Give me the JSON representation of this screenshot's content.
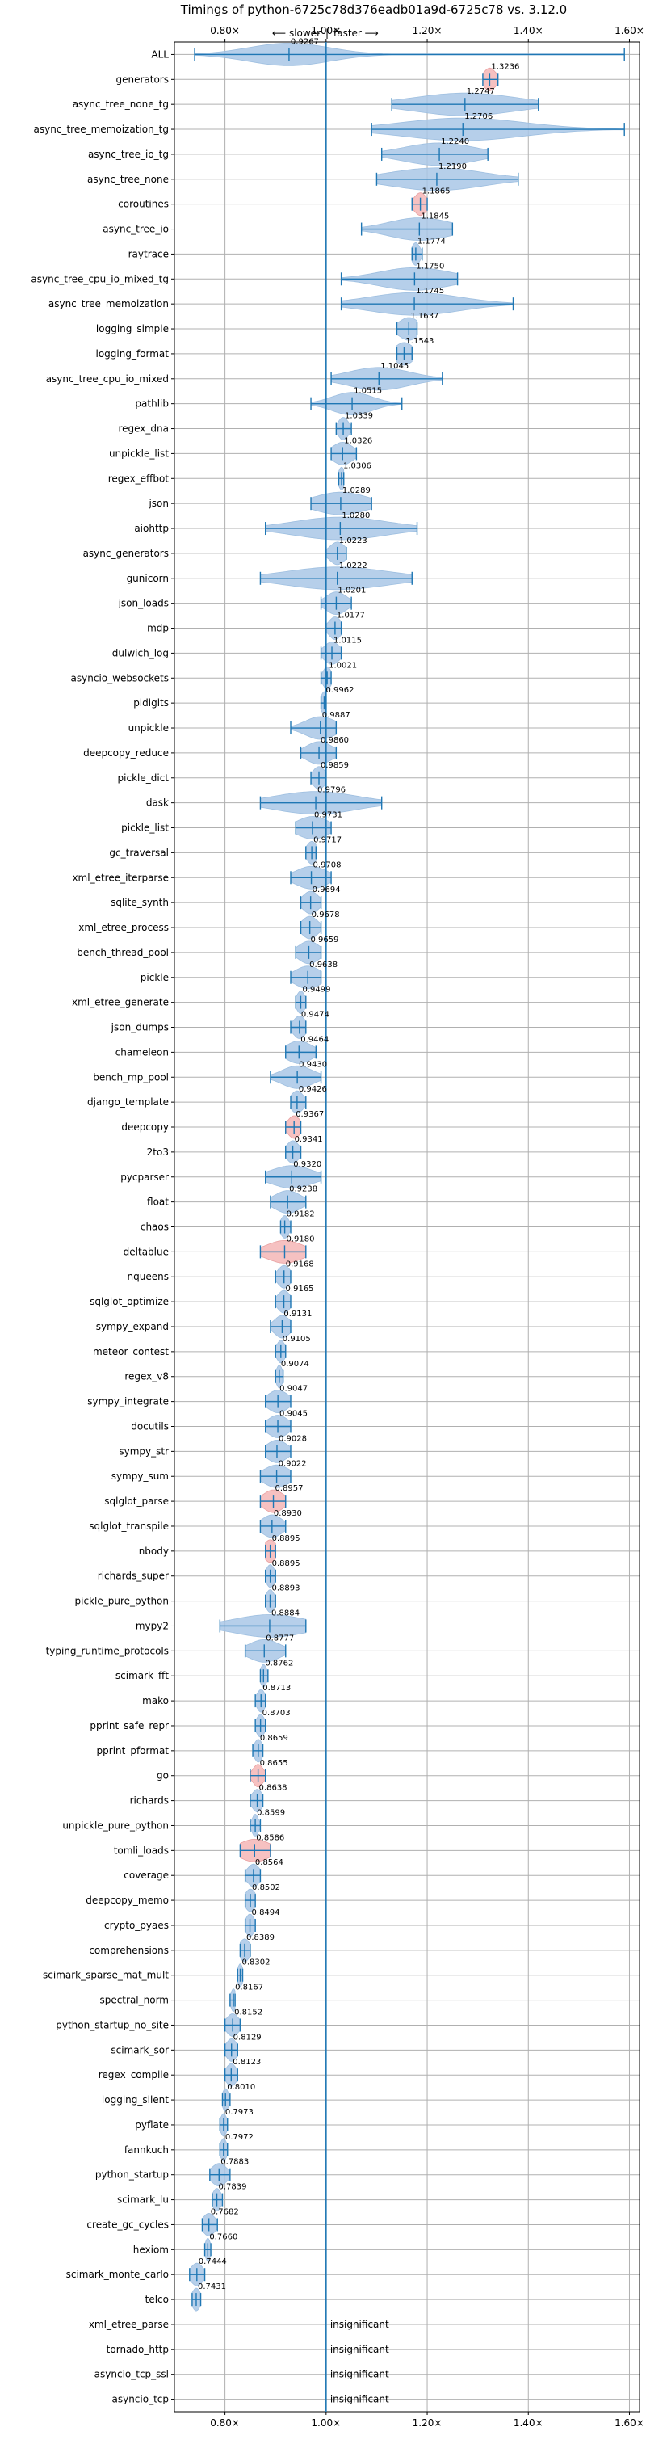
{
  "chart_data": {
    "type": "violin",
    "title": "Timings of python-6725c78d376eadb01a9d-6725c78 vs. 3.12.0",
    "direction": {
      "slower": "⟵ slower",
      "separator": "|",
      "faster": "faster ⟶"
    },
    "xlim": [
      0.7,
      1.62
    ],
    "xticks": [
      0.8,
      1.0,
      1.2,
      1.4,
      1.6
    ],
    "xtick_labels": [
      "0.80×",
      "1.00×",
      "1.20×",
      "1.40×",
      "1.60×"
    ],
    "grid": true,
    "insignificant_label": "insignificant",
    "benchmarks": [
      {
        "name": "ALL",
        "mean": 0.9267,
        "label": "0.9267",
        "min": 0.74,
        "max": 1.59,
        "spread": 0.08
      },
      {
        "name": "generators",
        "mean": 1.3236,
        "label": "1.3236",
        "min": 1.31,
        "max": 1.34,
        "spread": 0.012,
        "highlight": true
      },
      {
        "name": "async_tree_none_tg",
        "mean": 1.2747,
        "label": "1.2747",
        "min": 1.13,
        "max": 1.42,
        "spread": 0.1
      },
      {
        "name": "async_tree_memoization_tg",
        "mean": 1.2706,
        "label": "1.2706",
        "min": 1.09,
        "max": 1.59,
        "spread": 0.12
      },
      {
        "name": "async_tree_io_tg",
        "mean": 1.224,
        "label": "1.2240",
        "min": 1.11,
        "max": 1.32,
        "spread": 0.07
      },
      {
        "name": "async_tree_none",
        "mean": 1.219,
        "label": "1.2190",
        "min": 1.1,
        "max": 1.38,
        "spread": 0.09
      },
      {
        "name": "coroutines",
        "mean": 1.1865,
        "label": "1.1865",
        "min": 1.17,
        "max": 1.2,
        "spread": 0.012,
        "highlight": true
      },
      {
        "name": "async_tree_io",
        "mean": 1.1845,
        "label": "1.1845",
        "min": 1.07,
        "max": 1.25,
        "spread": 0.06
      },
      {
        "name": "raytrace",
        "mean": 1.1774,
        "label": "1.1774",
        "min": 1.17,
        "max": 1.19,
        "spread": 0.008
      },
      {
        "name": "async_tree_cpu_io_mixed_tg",
        "mean": 1.175,
        "label": "1.1750",
        "min": 1.03,
        "max": 1.26,
        "spread": 0.07
      },
      {
        "name": "async_tree_memoization",
        "mean": 1.1745,
        "label": "1.1745",
        "min": 1.03,
        "max": 1.37,
        "spread": 0.09
      },
      {
        "name": "logging_simple",
        "mean": 1.1637,
        "label": "1.1637",
        "min": 1.14,
        "max": 1.18,
        "spread": 0.02
      },
      {
        "name": "logging_format",
        "mean": 1.1543,
        "label": "1.1543",
        "min": 1.14,
        "max": 1.17,
        "spread": 0.018
      },
      {
        "name": "async_tree_cpu_io_mixed",
        "mean": 1.1045,
        "label": "1.1045",
        "min": 1.01,
        "max": 1.23,
        "spread": 0.06
      },
      {
        "name": "pathlib",
        "mean": 1.0515,
        "label": "1.0515",
        "min": 0.97,
        "max": 1.15,
        "spread": 0.04
      },
      {
        "name": "regex_dna",
        "mean": 1.0339,
        "label": "1.0339",
        "min": 1.02,
        "max": 1.05,
        "spread": 0.01
      },
      {
        "name": "unpickle_list",
        "mean": 1.0326,
        "label": "1.0326",
        "min": 1.01,
        "max": 1.06,
        "spread": 0.02
      },
      {
        "name": "regex_effbot",
        "mean": 1.0306,
        "label": "1.0306",
        "min": 1.025,
        "max": 1.035,
        "spread": 0.006
      },
      {
        "name": "json",
        "mean": 1.0289,
        "label": "1.0289",
        "min": 0.97,
        "max": 1.09,
        "spread": 0.05
      },
      {
        "name": "aiohttp",
        "mean": 1.028,
        "label": "1.0280",
        "min": 0.88,
        "max": 1.18,
        "spread": 0.09
      },
      {
        "name": "async_generators",
        "mean": 1.0223,
        "label": "1.0223",
        "min": 1.0,
        "max": 1.04,
        "spread": 0.015
      },
      {
        "name": "gunicorn",
        "mean": 1.0222,
        "label": "1.0222",
        "min": 0.87,
        "max": 1.17,
        "spread": 0.1
      },
      {
        "name": "json_loads",
        "mean": 1.0201,
        "label": "1.0201",
        "min": 0.99,
        "max": 1.05,
        "spread": 0.02
      },
      {
        "name": "mdp",
        "mean": 1.0177,
        "label": "1.0177",
        "min": 1.0,
        "max": 1.03,
        "spread": 0.012
      },
      {
        "name": "dulwich_log",
        "mean": 1.0115,
        "label": "1.0115",
        "min": 0.99,
        "max": 1.03,
        "spread": 0.015
      },
      {
        "name": "asyncio_websockets",
        "mean": 1.0021,
        "label": "1.0021",
        "min": 0.99,
        "max": 1.01,
        "spread": 0.008
      },
      {
        "name": "pidigits",
        "mean": 0.9962,
        "label": "0.9962",
        "min": 0.99,
        "max": 1.0,
        "spread": 0.006
      },
      {
        "name": "unpickle",
        "mean": 0.9887,
        "label": "0.9887",
        "min": 0.93,
        "max": 1.02,
        "spread": 0.03
      },
      {
        "name": "deepcopy_reduce",
        "mean": 0.986,
        "label": "0.9860",
        "min": 0.95,
        "max": 1.02,
        "spread": 0.025
      },
      {
        "name": "pickle_dict",
        "mean": 0.9859,
        "label": "0.9859",
        "min": 0.97,
        "max": 1.0,
        "spread": 0.012
      },
      {
        "name": "dask",
        "mean": 0.9796,
        "label": "0.9796",
        "min": 0.87,
        "max": 1.11,
        "spread": 0.08
      },
      {
        "name": "pickle_list",
        "mean": 0.9731,
        "label": "0.9731",
        "min": 0.94,
        "max": 1.01,
        "spread": 0.03
      },
      {
        "name": "gc_traversal",
        "mean": 0.9717,
        "label": "0.9717",
        "min": 0.96,
        "max": 0.98,
        "spread": 0.01
      },
      {
        "name": "xml_etree_iterparse",
        "mean": 0.9708,
        "label": "0.9708",
        "min": 0.93,
        "max": 1.01,
        "spread": 0.03
      },
      {
        "name": "sqlite_synth",
        "mean": 0.9694,
        "label": "0.9694",
        "min": 0.95,
        "max": 0.99,
        "spread": 0.015
      },
      {
        "name": "xml_etree_process",
        "mean": 0.9678,
        "label": "0.9678",
        "min": 0.95,
        "max": 0.99,
        "spread": 0.015
      },
      {
        "name": "bench_thread_pool",
        "mean": 0.9659,
        "label": "0.9659",
        "min": 0.94,
        "max": 0.99,
        "spread": 0.02
      },
      {
        "name": "pickle",
        "mean": 0.9638,
        "label": "0.9638",
        "min": 0.93,
        "max": 0.99,
        "spread": 0.025
      },
      {
        "name": "xml_etree_generate",
        "mean": 0.9499,
        "label": "0.9499",
        "min": 0.94,
        "max": 0.96,
        "spread": 0.008
      },
      {
        "name": "json_dumps",
        "mean": 0.9474,
        "label": "0.9474",
        "min": 0.93,
        "max": 0.96,
        "spread": 0.012
      },
      {
        "name": "chameleon",
        "mean": 0.9464,
        "label": "0.9464",
        "min": 0.92,
        "max": 0.98,
        "spread": 0.025
      },
      {
        "name": "bench_mp_pool",
        "mean": 0.943,
        "label": "0.9430",
        "min": 0.89,
        "max": 0.99,
        "spread": 0.03
      },
      {
        "name": "django_template",
        "mean": 0.9426,
        "label": "0.9426",
        "min": 0.93,
        "max": 0.96,
        "spread": 0.012
      },
      {
        "name": "deepcopy",
        "mean": 0.9367,
        "label": "0.9367",
        "min": 0.92,
        "max": 0.95,
        "spread": 0.012,
        "highlight": true
      },
      {
        "name": "2to3",
        "mean": 0.9341,
        "label": "0.9341",
        "min": 0.92,
        "max": 0.95,
        "spread": 0.012
      },
      {
        "name": "pycparser",
        "mean": 0.932,
        "label": "0.9320",
        "min": 0.88,
        "max": 0.99,
        "spread": 0.04
      },
      {
        "name": "float",
        "mean": 0.9238,
        "label": "0.9238",
        "min": 0.89,
        "max": 0.96,
        "spread": 0.025
      },
      {
        "name": "chaos",
        "mean": 0.9182,
        "label": "0.9182",
        "min": 0.91,
        "max": 0.93,
        "spread": 0.008
      },
      {
        "name": "deltablue",
        "mean": 0.918,
        "label": "0.9180",
        "min": 0.87,
        "max": 0.96,
        "spread": 0.035,
        "highlight": true
      },
      {
        "name": "nqueens",
        "mean": 0.9168,
        "label": "0.9168",
        "min": 0.9,
        "max": 0.93,
        "spread": 0.012
      },
      {
        "name": "sqlglot_optimize",
        "mean": 0.9165,
        "label": "0.9165",
        "min": 0.9,
        "max": 0.93,
        "spread": 0.012
      },
      {
        "name": "sympy_expand",
        "mean": 0.9131,
        "label": "0.9131",
        "min": 0.89,
        "max": 0.93,
        "spread": 0.015
      },
      {
        "name": "meteor_contest",
        "mean": 0.9105,
        "label": "0.9105",
        "min": 0.9,
        "max": 0.92,
        "spread": 0.008
      },
      {
        "name": "regex_v8",
        "mean": 0.9074,
        "label": "0.9074",
        "min": 0.9,
        "max": 0.915,
        "spread": 0.006
      },
      {
        "name": "sympy_integrate",
        "mean": 0.9047,
        "label": "0.9047",
        "min": 0.88,
        "max": 0.93,
        "spread": 0.02
      },
      {
        "name": "docutils",
        "mean": 0.9045,
        "label": "0.9045",
        "min": 0.88,
        "max": 0.93,
        "spread": 0.02
      },
      {
        "name": "sympy_str",
        "mean": 0.9028,
        "label": "0.9028",
        "min": 0.88,
        "max": 0.93,
        "spread": 0.02
      },
      {
        "name": "sympy_sum",
        "mean": 0.9022,
        "label": "0.9022",
        "min": 0.87,
        "max": 0.93,
        "spread": 0.025
      },
      {
        "name": "sqlglot_parse",
        "mean": 0.8957,
        "label": "0.8957",
        "min": 0.87,
        "max": 0.92,
        "spread": 0.02,
        "highlight": true
      },
      {
        "name": "sqlglot_transpile",
        "mean": 0.893,
        "label": "0.8930",
        "min": 0.87,
        "max": 0.92,
        "spread": 0.02
      },
      {
        "name": "nbody",
        "mean": 0.8895,
        "label": "0.8895",
        "min": 0.88,
        "max": 0.9,
        "spread": 0.012,
        "highlight": true
      },
      {
        "name": "richards_super",
        "mean": 0.8895,
        "label": "0.8895",
        "min": 0.88,
        "max": 0.9,
        "spread": 0.008
      },
      {
        "name": "pickle_pure_python",
        "mean": 0.8893,
        "label": "0.8893",
        "min": 0.88,
        "max": 0.9,
        "spread": 0.008
      },
      {
        "name": "mypy2",
        "mean": 0.8884,
        "label": "0.8884",
        "min": 0.79,
        "max": 0.96,
        "spread": 0.07
      },
      {
        "name": "typing_runtime_protocols",
        "mean": 0.8777,
        "label": "0.8777",
        "min": 0.84,
        "max": 0.92,
        "spread": 0.03
      },
      {
        "name": "scimark_fft",
        "mean": 0.8762,
        "label": "0.8762",
        "min": 0.87,
        "max": 0.885,
        "spread": 0.006
      },
      {
        "name": "mako",
        "mean": 0.8713,
        "label": "0.8713",
        "min": 0.86,
        "max": 0.88,
        "spread": 0.008
      },
      {
        "name": "pprint_safe_repr",
        "mean": 0.8703,
        "label": "0.8703",
        "min": 0.86,
        "max": 0.88,
        "spread": 0.008
      },
      {
        "name": "pprint_pformat",
        "mean": 0.8659,
        "label": "0.8659",
        "min": 0.855,
        "max": 0.875,
        "spread": 0.008
      },
      {
        "name": "go",
        "mean": 0.8655,
        "label": "0.8655",
        "min": 0.85,
        "max": 0.88,
        "spread": 0.01,
        "highlight": true
      },
      {
        "name": "richards",
        "mean": 0.8638,
        "label": "0.8638",
        "min": 0.85,
        "max": 0.875,
        "spread": 0.01
      },
      {
        "name": "unpickle_pure_python",
        "mean": 0.8599,
        "label": "0.8599",
        "min": 0.85,
        "max": 0.87,
        "spread": 0.006
      },
      {
        "name": "tomli_loads",
        "mean": 0.8586,
        "label": "0.8586",
        "min": 0.83,
        "max": 0.89,
        "spread": 0.03,
        "highlight": true
      },
      {
        "name": "coverage",
        "mean": 0.8564,
        "label": "0.8564",
        "min": 0.84,
        "max": 0.87,
        "spread": 0.012
      },
      {
        "name": "deepcopy_memo",
        "mean": 0.8502,
        "label": "0.8502",
        "min": 0.84,
        "max": 0.86,
        "spread": 0.01
      },
      {
        "name": "crypto_pyaes",
        "mean": 0.8494,
        "label": "0.8494",
        "min": 0.84,
        "max": 0.86,
        "spread": 0.008
      },
      {
        "name": "comprehensions",
        "mean": 0.8389,
        "label": "0.8389",
        "min": 0.83,
        "max": 0.85,
        "spread": 0.01
      },
      {
        "name": "scimark_sparse_mat_mult",
        "mean": 0.8302,
        "label": "0.8302",
        "min": 0.825,
        "max": 0.835,
        "spread": 0.005
      },
      {
        "name": "spectral_norm",
        "mean": 0.8167,
        "label": "0.8167",
        "min": 0.81,
        "max": 0.82,
        "spread": 0.005
      },
      {
        "name": "python_startup_no_site",
        "mean": 0.8152,
        "label": "0.8152",
        "min": 0.8,
        "max": 0.83,
        "spread": 0.012
      },
      {
        "name": "scimark_sor",
        "mean": 0.8129,
        "label": "0.8129",
        "min": 0.8,
        "max": 0.825,
        "spread": 0.01
      },
      {
        "name": "regex_compile",
        "mean": 0.8123,
        "label": "0.8123",
        "min": 0.8,
        "max": 0.825,
        "spread": 0.01
      },
      {
        "name": "logging_silent",
        "mean": 0.801,
        "label": "0.8010",
        "min": 0.795,
        "max": 0.81,
        "spread": 0.006
      },
      {
        "name": "pyflate",
        "mean": 0.7973,
        "label": "0.7973",
        "min": 0.79,
        "max": 0.805,
        "spread": 0.006
      },
      {
        "name": "fannkuch",
        "mean": 0.7972,
        "label": "0.7972",
        "min": 0.79,
        "max": 0.805,
        "spread": 0.006
      },
      {
        "name": "python_startup",
        "mean": 0.7883,
        "label": "0.7883",
        "min": 0.77,
        "max": 0.81,
        "spread": 0.015
      },
      {
        "name": "scimark_lu",
        "mean": 0.7839,
        "label": "0.7839",
        "min": 0.775,
        "max": 0.795,
        "spread": 0.008
      },
      {
        "name": "create_gc_cycles",
        "mean": 0.7682,
        "label": "0.7682",
        "min": 0.755,
        "max": 0.785,
        "spread": 0.012
      },
      {
        "name": "hexiom",
        "mean": 0.766,
        "label": "0.7660",
        "min": 0.76,
        "max": 0.772,
        "spread": 0.005
      },
      {
        "name": "scimark_monte_carlo",
        "mean": 0.7444,
        "label": "0.7444",
        "min": 0.73,
        "max": 0.76,
        "spread": 0.012
      },
      {
        "name": "telco",
        "mean": 0.7431,
        "label": "0.7431",
        "min": 0.735,
        "max": 0.752,
        "spread": 0.008
      },
      {
        "name": "xml_etree_parse",
        "insignificant": true
      },
      {
        "name": "tornado_http",
        "insignificant": true
      },
      {
        "name": "asyncio_tcp_ssl",
        "insignificant": true
      },
      {
        "name": "asyncio_tcp",
        "insignificant": true
      }
    ]
  }
}
